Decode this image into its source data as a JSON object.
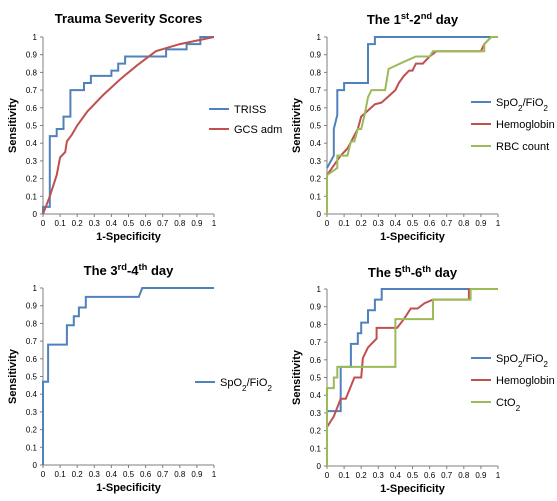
{
  "chart_data": [
    {
      "type": "line",
      "title": "Trauma Severity Scores",
      "xlabel": "1-Specificity",
      "ylabel": "Sensitivity",
      "xlim": [
        0,
        1
      ],
      "ylim": [
        0,
        1
      ],
      "xticks": [
        "0",
        "0.1",
        "0.2",
        "0.3",
        "0.4",
        "0.5",
        "0.6",
        "0.7",
        "0.8",
        "0.9",
        "1"
      ],
      "yticks": [
        "0",
        "0.1",
        "0.2",
        "0.3",
        "0.4",
        "0.5",
        "0.6",
        "0.7",
        "0.8",
        "0.9",
        "1"
      ],
      "legend_position": "right",
      "series": [
        {
          "name": "TRISS",
          "color": "#4F81BD",
          "points": [
            [
              0,
              0
            ],
            [
              0,
              0.04
            ],
            [
              0.04,
              0.04
            ],
            [
              0.04,
              0.44
            ],
            [
              0.08,
              0.44
            ],
            [
              0.08,
              0.48
            ],
            [
              0.12,
              0.48
            ],
            [
              0.12,
              0.55
            ],
            [
              0.16,
              0.55
            ],
            [
              0.16,
              0.7
            ],
            [
              0.24,
              0.7
            ],
            [
              0.24,
              0.74
            ],
            [
              0.28,
              0.74
            ],
            [
              0.28,
              0.78
            ],
            [
              0.4,
              0.78
            ],
            [
              0.4,
              0.81
            ],
            [
              0.44,
              0.81
            ],
            [
              0.44,
              0.85
            ],
            [
              0.48,
              0.85
            ],
            [
              0.48,
              0.89
            ],
            [
              0.72,
              0.89
            ],
            [
              0.72,
              0.93
            ],
            [
              0.84,
              0.93
            ],
            [
              0.84,
              0.96
            ],
            [
              0.92,
              0.96
            ],
            [
              0.92,
              1
            ],
            [
              1,
              1
            ]
          ]
        },
        {
          "name": "GCS adm",
          "color": "#C0504D",
          "points": [
            [
              0,
              0
            ],
            [
              0.04,
              0.1
            ],
            [
              0.08,
              0.22
            ],
            [
              0.1,
              0.32
            ],
            [
              0.13,
              0.35
            ],
            [
              0.14,
              0.41
            ],
            [
              0.17,
              0.45
            ],
            [
              0.2,
              0.5
            ],
            [
              0.26,
              0.58
            ],
            [
              0.35,
              0.67
            ],
            [
              0.45,
              0.76
            ],
            [
              0.55,
              0.84
            ],
            [
              0.66,
              0.92
            ],
            [
              0.8,
              0.96
            ],
            [
              1,
              1
            ]
          ]
        }
      ]
    },
    {
      "type": "line",
      "title": {
        "pre": "The 1",
        "sup1": "st",
        "mid": "-2",
        "sup2": "nd",
        "post": " day"
      },
      "xlabel": "1-Specificity",
      "ylabel": "Sensitivity",
      "xlim": [
        0,
        1
      ],
      "ylim": [
        0,
        1
      ],
      "xticks": [
        "0",
        "0.1",
        "0.2",
        "0.3",
        "0.4",
        "0.5",
        "0.6",
        "0.7",
        "0.8",
        "0.9",
        "1"
      ],
      "yticks": [
        "0",
        "0.1",
        "0.2",
        "0.3",
        "0.4",
        "0.5",
        "0.6",
        "0.7",
        "0.8",
        "0.9",
        "1"
      ],
      "legend_position": "right",
      "series": [
        {
          "name": {
            "base": "SpO",
            "sub": "2",
            "rest": "/FiO",
            "sub2": "2"
          },
          "color": "#4F81BD",
          "points": [
            [
              0,
              0.26
            ],
            [
              0.04,
              0.33
            ],
            [
              0.04,
              0.48
            ],
            [
              0.06,
              0.56
            ],
            [
              0.06,
              0.7
            ],
            [
              0.1,
              0.7
            ],
            [
              0.1,
              0.74
            ],
            [
              0.24,
              0.74
            ],
            [
              0.24,
              0.96
            ],
            [
              0.28,
              0.96
            ],
            [
              0.28,
              1
            ],
            [
              1,
              1
            ]
          ]
        },
        {
          "name": "Hemoglobin",
          "color": "#C0504D",
          "points": [
            [
              0,
              0.22
            ],
            [
              0.08,
              0.33
            ],
            [
              0.12,
              0.37
            ],
            [
              0.18,
              0.48
            ],
            [
              0.2,
              0.55
            ],
            [
              0.28,
              0.62
            ],
            [
              0.32,
              0.63
            ],
            [
              0.4,
              0.7
            ],
            [
              0.42,
              0.74
            ],
            [
              0.45,
              0.78
            ],
            [
              0.48,
              0.81
            ],
            [
              0.5,
              0.81
            ],
            [
              0.52,
              0.85
            ],
            [
              0.56,
              0.85
            ],
            [
              0.6,
              0.89
            ],
            [
              0.64,
              0.92
            ],
            [
              0.9,
              0.92
            ],
            [
              0.92,
              0.96
            ],
            [
              0.96,
              1
            ],
            [
              1,
              1
            ]
          ]
        },
        {
          "name": "RBC count",
          "color": "#9BBB59",
          "points": [
            [
              0,
              0
            ],
            [
              0,
              0.22
            ],
            [
              0.06,
              0.26
            ],
            [
              0.06,
              0.33
            ],
            [
              0.12,
              0.33
            ],
            [
              0.14,
              0.41
            ],
            [
              0.16,
              0.41
            ],
            [
              0.18,
              0.48
            ],
            [
              0.2,
              0.48
            ],
            [
              0.22,
              0.56
            ],
            [
              0.24,
              0.66
            ],
            [
              0.26,
              0.7
            ],
            [
              0.34,
              0.7
            ],
            [
              0.36,
              0.82
            ],
            [
              0.45,
              0.86
            ],
            [
              0.52,
              0.89
            ],
            [
              0.6,
              0.89
            ],
            [
              0.62,
              0.92
            ],
            [
              0.92,
              0.92
            ],
            [
              0.92,
              0.96
            ],
            [
              0.96,
              1
            ],
            [
              1,
              1
            ]
          ]
        }
      ]
    },
    {
      "type": "line",
      "title": {
        "pre": "The 3",
        "sup1": "rd",
        "mid": "-4",
        "sup2": "th",
        "post": " day"
      },
      "xlabel": "1-Specificity",
      "ylabel": "Sensitivity",
      "xlim": [
        0,
        1
      ],
      "ylim": [
        0,
        1
      ],
      "xticks": [
        "0",
        "0.1",
        "0.2",
        "0.3",
        "0.4",
        "0.5",
        "0.6",
        "0.7",
        "0.8",
        "0.9",
        "1"
      ],
      "yticks": [
        "0",
        "0.1",
        "0.2",
        "0.3",
        "0.4",
        "0.5",
        "0.6",
        "0.7",
        "0.8",
        "0.9",
        "1"
      ],
      "legend_position": "right",
      "series": [
        {
          "name": {
            "base": "SpO",
            "sub": "2",
            "rest": "/FiO",
            "sub2": "2"
          },
          "color": "#4F81BD",
          "points": [
            [
              0,
              0
            ],
            [
              0,
              0.47
            ],
            [
              0.03,
              0.47
            ],
            [
              0.03,
              0.68
            ],
            [
              0.14,
              0.68
            ],
            [
              0.14,
              0.79
            ],
            [
              0.18,
              0.79
            ],
            [
              0.18,
              0.84
            ],
            [
              0.21,
              0.84
            ],
            [
              0.21,
              0.89
            ],
            [
              0.25,
              0.89
            ],
            [
              0.25,
              0.95
            ],
            [
              0.56,
              0.95
            ],
            [
              0.58,
              1
            ],
            [
              1,
              1
            ]
          ]
        }
      ]
    },
    {
      "type": "line",
      "title": {
        "pre": "The 5",
        "sup1": "th",
        "mid": "-6",
        "sup2": "th",
        "post": " day"
      },
      "xlabel": "1-Specificity",
      "ylabel": "Sensitivity",
      "xlim": [
        0,
        1
      ],
      "ylim": [
        0,
        1
      ],
      "xticks": [
        "0",
        "0.1",
        "0.2",
        "0.3",
        "0.4",
        "0.5",
        "0.6",
        "0.7",
        "0.8",
        "0.9",
        "1"
      ],
      "yticks": [
        "0",
        "0.1",
        "0.2",
        "0.3",
        "0.4",
        "0.5",
        "0.6",
        "0.7",
        "0.8",
        "0.9",
        "1"
      ],
      "legend_position": "right",
      "series": [
        {
          "name": {
            "base": "SpO",
            "sub": "2",
            "rest": "/FiO",
            "sub2": "2"
          },
          "color": "#4F81BD",
          "points": [
            [
              0,
              0.22
            ],
            [
              0,
              0.31
            ],
            [
              0.08,
              0.31
            ],
            [
              0.08,
              0.56
            ],
            [
              0.14,
              0.56
            ],
            [
              0.14,
              0.69
            ],
            [
              0.18,
              0.69
            ],
            [
              0.18,
              0.75
            ],
            [
              0.2,
              0.75
            ],
            [
              0.2,
              0.81
            ],
            [
              0.24,
              0.81
            ],
            [
              0.24,
              0.88
            ],
            [
              0.28,
              0.88
            ],
            [
              0.28,
              0.94
            ],
            [
              0.32,
              0.94
            ],
            [
              0.32,
              1
            ],
            [
              1,
              1
            ]
          ]
        },
        {
          "name": "Hemoglobin",
          "color": "#C0504D",
          "points": [
            [
              0,
              0.22
            ],
            [
              0.04,
              0.28
            ],
            [
              0.08,
              0.38
            ],
            [
              0.11,
              0.38
            ],
            [
              0.16,
              0.5
            ],
            [
              0.2,
              0.5
            ],
            [
              0.21,
              0.61
            ],
            [
              0.24,
              0.67
            ],
            [
              0.29,
              0.72
            ],
            [
              0.29,
              0.78
            ],
            [
              0.41,
              0.78
            ],
            [
              0.45,
              0.83
            ],
            [
              0.49,
              0.89
            ],
            [
              0.53,
              0.89
            ],
            [
              0.57,
              0.92
            ],
            [
              0.62,
              0.94
            ],
            [
              0.83,
              0.94
            ],
            [
              0.83,
              1
            ],
            [
              1,
              1
            ]
          ]
        },
        {
          "name": {
            "base": "CtO",
            "sub": "2",
            "rest": "",
            "sub2": ""
          },
          "color": "#9BBB59",
          "points": [
            [
              0,
              0
            ],
            [
              0,
              0.44
            ],
            [
              0.04,
              0.44
            ],
            [
              0.04,
              0.5
            ],
            [
              0.06,
              0.5
            ],
            [
              0.06,
              0.56
            ],
            [
              0.4,
              0.56
            ],
            [
              0.4,
              0.83
            ],
            [
              0.62,
              0.83
            ],
            [
              0.62,
              0.94
            ],
            [
              0.84,
              0.94
            ],
            [
              0.84,
              1
            ],
            [
              1,
              1
            ]
          ]
        }
      ]
    }
  ]
}
